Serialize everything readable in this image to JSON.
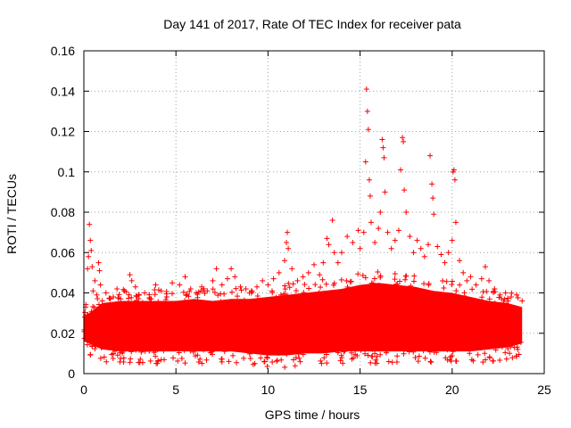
{
  "chart_data": {
    "type": "scatter",
    "title": "Day 141 of 2017, Rate Of TEC Index for receiver pata",
    "xlabel": "GPS time / hours",
    "ylabel": "ROTI / TECUs",
    "xlim": [
      0,
      25
    ],
    "ylim": [
      0,
      0.16
    ],
    "xticks": [
      0,
      5,
      10,
      15,
      20,
      25
    ],
    "yticks": [
      0,
      0.02,
      0.04,
      0.06,
      0.08,
      0.1,
      0.12,
      0.14,
      0.16
    ],
    "xtick_labels": [
      "0",
      "5",
      "10",
      "15",
      "20",
      "25"
    ],
    "ytick_labels": [
      "0",
      "0.02",
      "0.04",
      "0.06",
      "0.08",
      "0.1",
      "0.12",
      "0.14",
      "0.16"
    ],
    "grid": true,
    "marker": "+",
    "color": "#ff0000",
    "points": [
      [
        0.05,
        0.028
      ],
      [
        0.1,
        0.033
      ],
      [
        0.15,
        0.025
      ],
      [
        0.2,
        0.052
      ],
      [
        0.25,
        0.058
      ],
      [
        0.3,
        0.074
      ],
      [
        0.35,
        0.066
      ],
      [
        0.4,
        0.061
      ],
      [
        0.45,
        0.053
      ],
      [
        0.5,
        0.041
      ],
      [
        0.6,
        0.046
      ],
      [
        0.7,
        0.039
      ],
      [
        0.8,
        0.055
      ],
      [
        0.85,
        0.051
      ],
      [
        0.9,
        0.044
      ],
      [
        1.0,
        0.036
      ],
      [
        1.2,
        0.04
      ],
      [
        1.4,
        0.034
      ],
      [
        1.6,
        0.038
      ],
      [
        1.8,
        0.042
      ],
      [
        2.0,
        0.037
      ],
      [
        2.2,
        0.041
      ],
      [
        2.5,
        0.049
      ],
      [
        2.6,
        0.046
      ],
      [
        2.8,
        0.043
      ],
      [
        3.0,
        0.039
      ],
      [
        3.3,
        0.04
      ],
      [
        3.6,
        0.037
      ],
      [
        3.9,
        0.044
      ],
      [
        4.2,
        0.041
      ],
      [
        4.5,
        0.038
      ],
      [
        4.8,
        0.045
      ],
      [
        5.2,
        0.044
      ],
      [
        5.5,
        0.048
      ],
      [
        5.8,
        0.042
      ],
      [
        6.1,
        0.04
      ],
      [
        6.4,
        0.043
      ],
      [
        6.7,
        0.041
      ],
      [
        7.0,
        0.046
      ],
      [
        7.2,
        0.052
      ],
      [
        7.5,
        0.044
      ],
      [
        7.8,
        0.047
      ],
      [
        8.0,
        0.052
      ],
      [
        8.2,
        0.048
      ],
      [
        8.5,
        0.043
      ],
      [
        8.8,
        0.042
      ],
      [
        9.1,
        0.04
      ],
      [
        9.4,
        0.043
      ],
      [
        9.7,
        0.046
      ],
      [
        10.0,
        0.044
      ],
      [
        10.3,
        0.047
      ],
      [
        10.6,
        0.05
      ],
      [
        10.9,
        0.056
      ],
      [
        11.0,
        0.065
      ],
      [
        11.05,
        0.07
      ],
      [
        11.1,
        0.062
      ],
      [
        11.3,
        0.052
      ],
      [
        11.6,
        0.046
      ],
      [
        11.9,
        0.048
      ],
      [
        12.2,
        0.05
      ],
      [
        12.5,
        0.054
      ],
      [
        12.8,
        0.049
      ],
      [
        13.0,
        0.055
      ],
      [
        13.2,
        0.067
      ],
      [
        13.3,
        0.064
      ],
      [
        13.5,
        0.076
      ],
      [
        13.6,
        0.06
      ],
      [
        13.8,
        0.055
      ],
      [
        14.0,
        0.06
      ],
      [
        14.3,
        0.068
      ],
      [
        14.6,
        0.065
      ],
      [
        14.9,
        0.071
      ],
      [
        15.0,
        0.062
      ],
      [
        15.2,
        0.07
      ],
      [
        15.3,
        0.105
      ],
      [
        15.35,
        0.141
      ],
      [
        15.4,
        0.13
      ],
      [
        15.45,
        0.121
      ],
      [
        15.5,
        0.096
      ],
      [
        15.55,
        0.088
      ],
      [
        15.6,
        0.075
      ],
      [
        15.8,
        0.065
      ],
      [
        16.0,
        0.072
      ],
      [
        16.1,
        0.08
      ],
      [
        16.2,
        0.116
      ],
      [
        16.25,
        0.112
      ],
      [
        16.3,
        0.107
      ],
      [
        16.35,
        0.09
      ],
      [
        16.5,
        0.07
      ],
      [
        16.7,
        0.062
      ],
      [
        16.9,
        0.066
      ],
      [
        17.1,
        0.071
      ],
      [
        17.2,
        0.101
      ],
      [
        17.3,
        0.117
      ],
      [
        17.35,
        0.115
      ],
      [
        17.4,
        0.091
      ],
      [
        17.5,
        0.08
      ],
      [
        17.7,
        0.068
      ],
      [
        17.9,
        0.06
      ],
      [
        18.1,
        0.066
      ],
      [
        18.3,
        0.062
      ],
      [
        18.5,
        0.058
      ],
      [
        18.7,
        0.064
      ],
      [
        18.8,
        0.108
      ],
      [
        18.9,
        0.094
      ],
      [
        18.95,
        0.087
      ],
      [
        19.0,
        0.079
      ],
      [
        19.2,
        0.063
      ],
      [
        19.4,
        0.059
      ],
      [
        19.6,
        0.055
      ],
      [
        19.8,
        0.06
      ],
      [
        20.0,
        0.066
      ],
      [
        20.05,
        0.1
      ],
      [
        20.1,
        0.101
      ],
      [
        20.15,
        0.096
      ],
      [
        20.2,
        0.075
      ],
      [
        20.4,
        0.056
      ],
      [
        20.6,
        0.05
      ],
      [
        20.8,
        0.046
      ],
      [
        21.0,
        0.048
      ],
      [
        21.3,
        0.044
      ],
      [
        21.6,
        0.047
      ],
      [
        21.8,
        0.053
      ],
      [
        22.0,
        0.046
      ],
      [
        22.3,
        0.042
      ],
      [
        22.6,
        0.039
      ],
      [
        22.9,
        0.04
      ],
      [
        23.2,
        0.038
      ],
      [
        23.5,
        0.039
      ],
      [
        23.8,
        0.036
      ]
    ],
    "band": [
      [
        0,
        0.016,
        0.028
      ],
      [
        1,
        0.012,
        0.035
      ],
      [
        2,
        0.011,
        0.036
      ],
      [
        3,
        0.011,
        0.036
      ],
      [
        4,
        0.011,
        0.036
      ],
      [
        5,
        0.011,
        0.036
      ],
      [
        6,
        0.011,
        0.037
      ],
      [
        7,
        0.011,
        0.036
      ],
      [
        8,
        0.011,
        0.037
      ],
      [
        9,
        0.01,
        0.037
      ],
      [
        10,
        0.009,
        0.038
      ],
      [
        11,
        0.009,
        0.039
      ],
      [
        12,
        0.01,
        0.04
      ],
      [
        13,
        0.01,
        0.041
      ],
      [
        14,
        0.011,
        0.042
      ],
      [
        15,
        0.011,
        0.044
      ],
      [
        16,
        0.011,
        0.045
      ],
      [
        17,
        0.011,
        0.044
      ],
      [
        18,
        0.011,
        0.043
      ],
      [
        19,
        0.011,
        0.041
      ],
      [
        20,
        0.011,
        0.04
      ],
      [
        21,
        0.011,
        0.038
      ],
      [
        22,
        0.012,
        0.036
      ],
      [
        23,
        0.013,
        0.035
      ],
      [
        23.8,
        0.015,
        0.033
      ]
    ]
  }
}
